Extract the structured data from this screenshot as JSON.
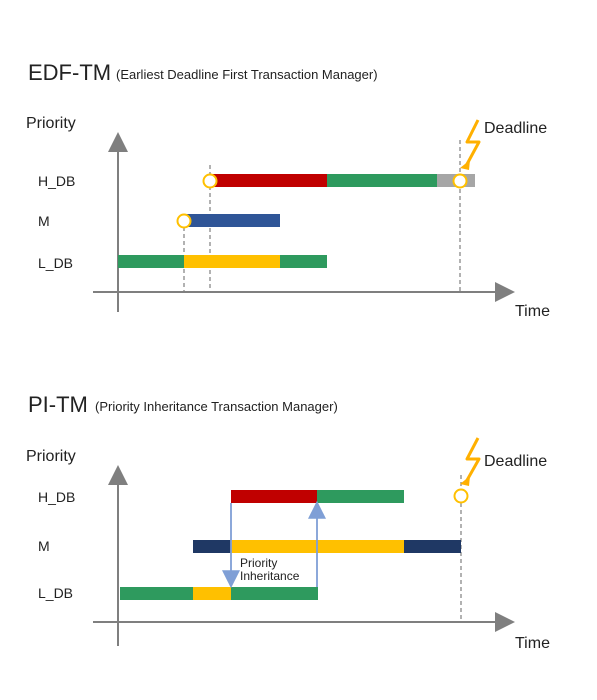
{
  "colors": {
    "red": "#c00000",
    "green": "#2e9a5e",
    "yellow": "#ffc000",
    "blue": "#2f5597",
    "navy": "#1f3864",
    "gray": "#a6a6a6",
    "bolt": "#ffb000",
    "arrow": "#7f9fd6",
    "axis": "#7f7f7f"
  },
  "icons": [
    "lightning-bolt-icon",
    "event-circle-icon"
  ],
  "edf": {
    "title": "EDF-TM",
    "subtitle": "(Earliest Deadline First Transaction Manager)",
    "priority_label": "Priority",
    "time_label": "Time",
    "deadline_label": "Deadline",
    "lanes": [
      "H_DB",
      "M",
      "L_DB"
    ]
  },
  "pi": {
    "title": "PI-TM",
    "subtitle": "(Priority Inheritance Transaction Manager)",
    "priority_label": "Priority",
    "time_label": "Time",
    "deadline_label": "Deadline",
    "lanes": [
      "H_DB",
      "M",
      "L_DB"
    ],
    "inheritance_label_1": "Priority",
    "inheritance_label_2": "Inheritance"
  }
}
